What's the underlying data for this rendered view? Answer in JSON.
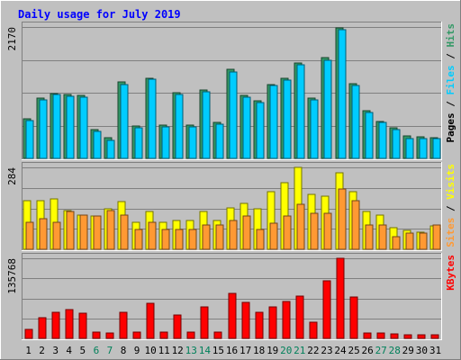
{
  "chart_data": {
    "type": "bar",
    "title": "Daily usage for July 2019",
    "categories": [
      "1",
      "2",
      "3",
      "4",
      "5",
      "6",
      "7",
      "8",
      "9",
      "10",
      "11",
      "12",
      "13",
      "14",
      "15",
      "16",
      "17",
      "18",
      "19",
      "20",
      "21",
      "22",
      "23",
      "24",
      "25",
      "26",
      "27",
      "28",
      "29",
      "30",
      "31"
    ],
    "weekend_days": [
      "6",
      "7",
      "13",
      "14",
      "20",
      "21",
      "27",
      "28"
    ],
    "panels": [
      {
        "id": "hits-files-pages",
        "ymax_label": "2170",
        "ylim": [
          0,
          2170
        ],
        "grid": true,
        "legend": [
          "Pages",
          "Files",
          "Hits"
        ],
        "series": [
          {
            "name": "Hits",
            "color": "#339966",
            "values": [
              655,
              995,
              1075,
              1050,
              1035,
              470,
              335,
              1265,
              540,
              1325,
              550,
              1080,
              555,
              1125,
              595,
              1465,
              1040,
              955,
              1225,
              1330,
              1575,
              995,
              1670,
              2155,
              1230,
              785,
              610,
              505,
              365,
              355,
              340
            ]
          },
          {
            "name": "Files",
            "color": "#00ccff",
            "values": [
              630,
              965,
              1055,
              1030,
              1010,
              440,
              300,
              1215,
              505,
              1305,
              525,
              1050,
              520,
              1095,
              565,
              1420,
              1015,
              925,
              1200,
              1300,
              1545,
              965,
              1620,
              2130,
              1205,
              760,
              590,
              480,
              330,
              325,
              325
            ]
          }
        ]
      },
      {
        "id": "visits-sites",
        "ymax_label": "284",
        "ylim": [
          0,
          284
        ],
        "grid": true,
        "legend": [
          "Sites",
          "Visits"
        ],
        "series": [
          {
            "name": "Visits",
            "color": "#ffff00",
            "values": [
              170,
              170,
              175,
              135,
              120,
              115,
              140,
              165,
              95,
              130,
              95,
              100,
              100,
              130,
              100,
              145,
              160,
              140,
              200,
              230,
              284,
              190,
              185,
              265,
              200,
              130,
              120,
              75,
              65,
              60,
              80
            ]
          },
          {
            "name": "Sites",
            "color": "#ff9933",
            "values": [
              95,
              105,
              95,
              130,
              120,
              115,
              135,
              120,
              70,
              95,
              70,
              70,
              70,
              85,
              85,
              100,
              115,
              70,
              90,
              115,
              155,
              125,
              125,
              210,
              170,
              85,
              85,
              45,
              55,
              55,
              85
            ]
          }
        ]
      },
      {
        "id": "kbytes",
        "ymax_label": "135768",
        "ylim": [
          0,
          135768
        ],
        "grid": true,
        "legend": [
          "KBytes"
        ],
        "series": [
          {
            "name": "KBytes",
            "color": "#ff0000",
            "values": [
              14500,
              35000,
              44000,
              49000,
              42000,
              11000,
              8500,
              45000,
              11000,
              59000,
              11000,
              39000,
              10000,
              54000,
              10000,
              76500,
              61000,
              45000,
              53000,
              62000,
              71000,
              28000,
              98000,
              135768,
              70000,
              9000,
              8500,
              7000,
              6000,
              6000,
              6000
            ]
          }
        ]
      }
    ]
  }
}
